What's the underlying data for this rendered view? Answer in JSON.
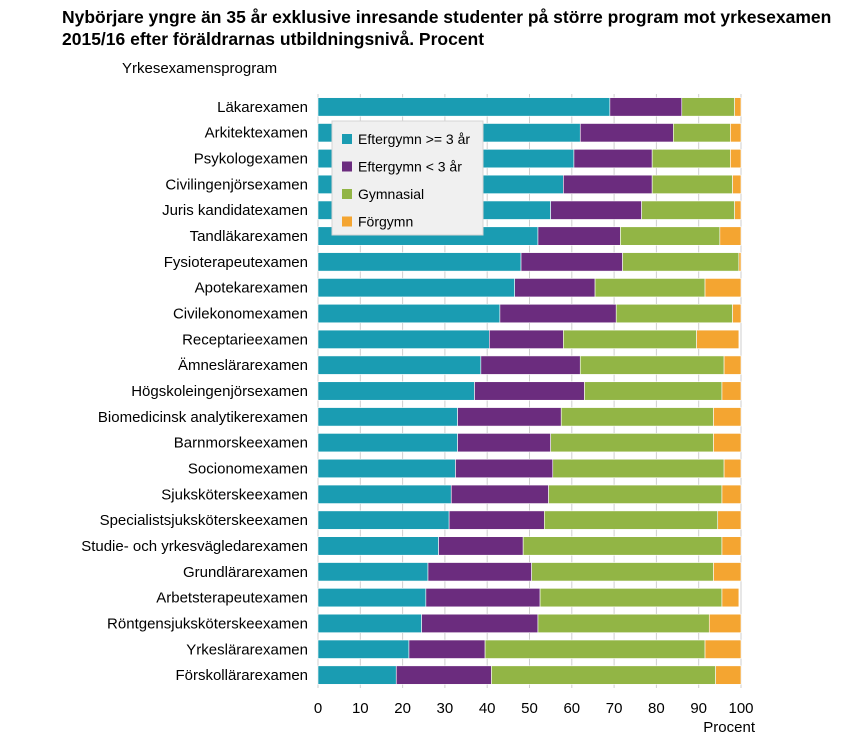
{
  "title": "Nybörjare yngre än 35 år exklusive inresande studenter på större program mot yrkesexamen 2015/16 efter föräldrarnas utbildningsnivå. Procent",
  "chart_data": {
    "type": "bar",
    "orientation": "horizontal",
    "stacked": true,
    "title": "Nybörjare yngre än 35 år exklusive inresande studenter på större program mot yrkesexamen 2015/16 efter föräldrarnas utbildningsnivå. Procent",
    "ylabel": "Yrkesexamensprogram",
    "xlabel": "Procent",
    "xlim": [
      0,
      100
    ],
    "xticks": [
      0,
      10,
      20,
      30,
      40,
      50,
      60,
      70,
      80,
      90,
      100
    ],
    "grid": true,
    "legend_position": "top-left",
    "categories": [
      "Läkarexamen",
      "Arkitektexamen",
      "Psykologexamen",
      "Civilingenjörsexamen",
      "Juris kandidatexamen",
      "Tandläkarexamen",
      "Fysioterapeutexamen",
      "Apotekarexamen",
      "Civilekonomexamen",
      "Receptarieexamen",
      "Ämneslärarexamen",
      "Högskoleingenjörsexamen",
      "Biomedicinsk analytikerexamen",
      "Barnmorskeexamen",
      "Socionomexamen",
      "Sjuksköterskeexamen",
      "Specialistsjuksköterskeexamen",
      "Studie- och yrkesvägledarexamen",
      "Grundlärarexamen",
      "Arbetsterapeutexamen",
      "Röntgensjuksköterskeexamen",
      "Yrkeslärarexamen",
      "Förskollärarexamen"
    ],
    "series": [
      {
        "name": "Eftergymn >= 3 år",
        "color": "#1a9cb2",
        "values": [
          69,
          62,
          60.5,
          58,
          55,
          52,
          48,
          46.5,
          43,
          40.5,
          38.5,
          37,
          33,
          33,
          32.5,
          31.5,
          31,
          28.5,
          26,
          25.5,
          24.5,
          21.5,
          18.5
        ]
      },
      {
        "name": "Eftergymn < 3 år",
        "color": "#6b2c7e",
        "values": [
          17,
          22,
          18.5,
          21,
          21.5,
          19.5,
          24,
          19,
          27.5,
          17.5,
          23.5,
          26,
          24.5,
          22,
          23,
          23,
          22.5,
          20,
          24.5,
          27,
          27.5,
          18,
          22.5
        ]
      },
      {
        "name": "Gymnasial",
        "color": "#92b545",
        "values": [
          12.5,
          13.5,
          18.5,
          19,
          22,
          23.5,
          27.5,
          26,
          27.5,
          31.5,
          34,
          32.5,
          36,
          38.5,
          40.5,
          41,
          41,
          47,
          43,
          43,
          40.5,
          52,
          53
        ]
      },
      {
        "name": "Förgymn",
        "color": "#f4a531",
        "values": [
          1.5,
          2.5,
          2.5,
          2,
          1.5,
          5,
          0.5,
          8.5,
          2,
          10,
          4,
          4.5,
          6.5,
          6.5,
          4,
          4.5,
          5.5,
          4.5,
          6.5,
          4,
          7.5,
          8.5,
          6
        ]
      }
    ]
  }
}
